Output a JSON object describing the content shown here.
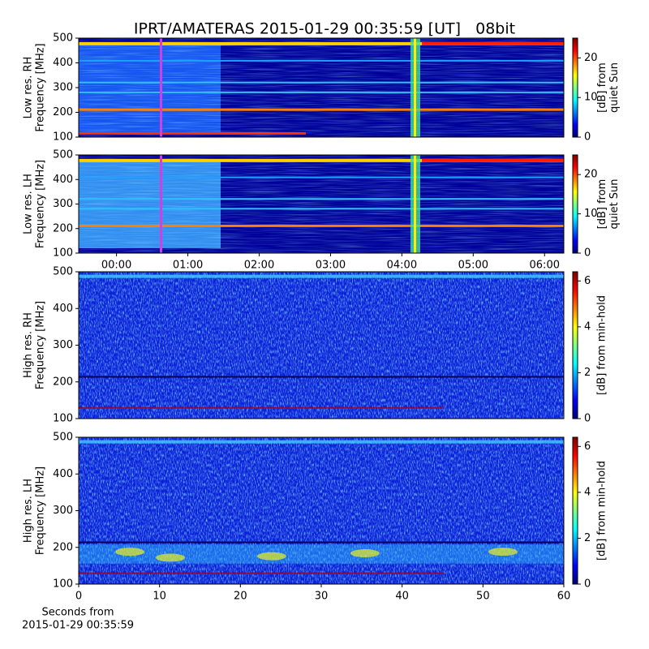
{
  "title": "IPRT/AMATERAS 2015-01-29 00:35:59 [UT]   08bit",
  "chart_data": [
    {
      "type": "heatmap",
      "ylabel": [
        "Low res. RH",
        "Frequency [MHz]"
      ],
      "ylim": [
        100,
        500
      ],
      "yticks": [
        100,
        200,
        300,
        400,
        500
      ],
      "xlim": [
        -0.53,
        6.27
      ],
      "colorbar": {
        "label": [
          "[dB] from",
          "quiet Sun"
        ],
        "lim": [
          0,
          25
        ],
        "ticks": [
          0,
          10,
          20
        ]
      }
    },
    {
      "type": "heatmap",
      "ylabel": [
        "Low res. LH",
        "Frequency [MHz]"
      ],
      "ylim": [
        100,
        500
      ],
      "yticks": [
        100,
        200,
        300,
        400,
        500
      ],
      "xlim": [
        -0.53,
        6.27
      ],
      "xticks": [
        {
          "value": 0,
          "label": "00:00"
        },
        {
          "value": 1,
          "label": "01:00"
        },
        {
          "value": 2,
          "label": "02:00"
        },
        {
          "value": 3,
          "label": "03:00"
        },
        {
          "value": 4,
          "label": "04:00"
        },
        {
          "value": 5,
          "label": "05:00"
        },
        {
          "value": 6,
          "label": "06:00"
        }
      ],
      "colorbar": {
        "label": [
          "[dB] from",
          "quiet Sun"
        ],
        "lim": [
          0,
          25
        ],
        "ticks": [
          0,
          10,
          20
        ]
      }
    },
    {
      "type": "heatmap",
      "ylabel": [
        "High res. RH",
        "Frequency [MHz]"
      ],
      "ylim": [
        100,
        500
      ],
      "yticks": [
        100,
        200,
        300,
        400,
        500
      ],
      "xlim": [
        0,
        60
      ],
      "colorbar": {
        "label": [
          "[dB] from min-hold"
        ],
        "lim": [
          0,
          6.4
        ],
        "ticks": [
          0,
          2,
          4,
          6
        ]
      }
    },
    {
      "type": "heatmap",
      "ylabel": [
        "High res. LH",
        "Frequency [MHz]"
      ],
      "ylim": [
        100,
        500
      ],
      "yticks": [
        100,
        200,
        300,
        400,
        500
      ],
      "xlim": [
        0,
        60
      ],
      "xticks": [
        0,
        10,
        20,
        30,
        40,
        50,
        60
      ],
      "xlabel": [
        "Seconds from",
        "2015-01-29 00:35:59"
      ],
      "colorbar": {
        "label": [
          "[dB] from min-hold"
        ],
        "lim": [
          0,
          6.4
        ],
        "ticks": [
          0,
          2,
          4,
          6
        ]
      }
    }
  ]
}
